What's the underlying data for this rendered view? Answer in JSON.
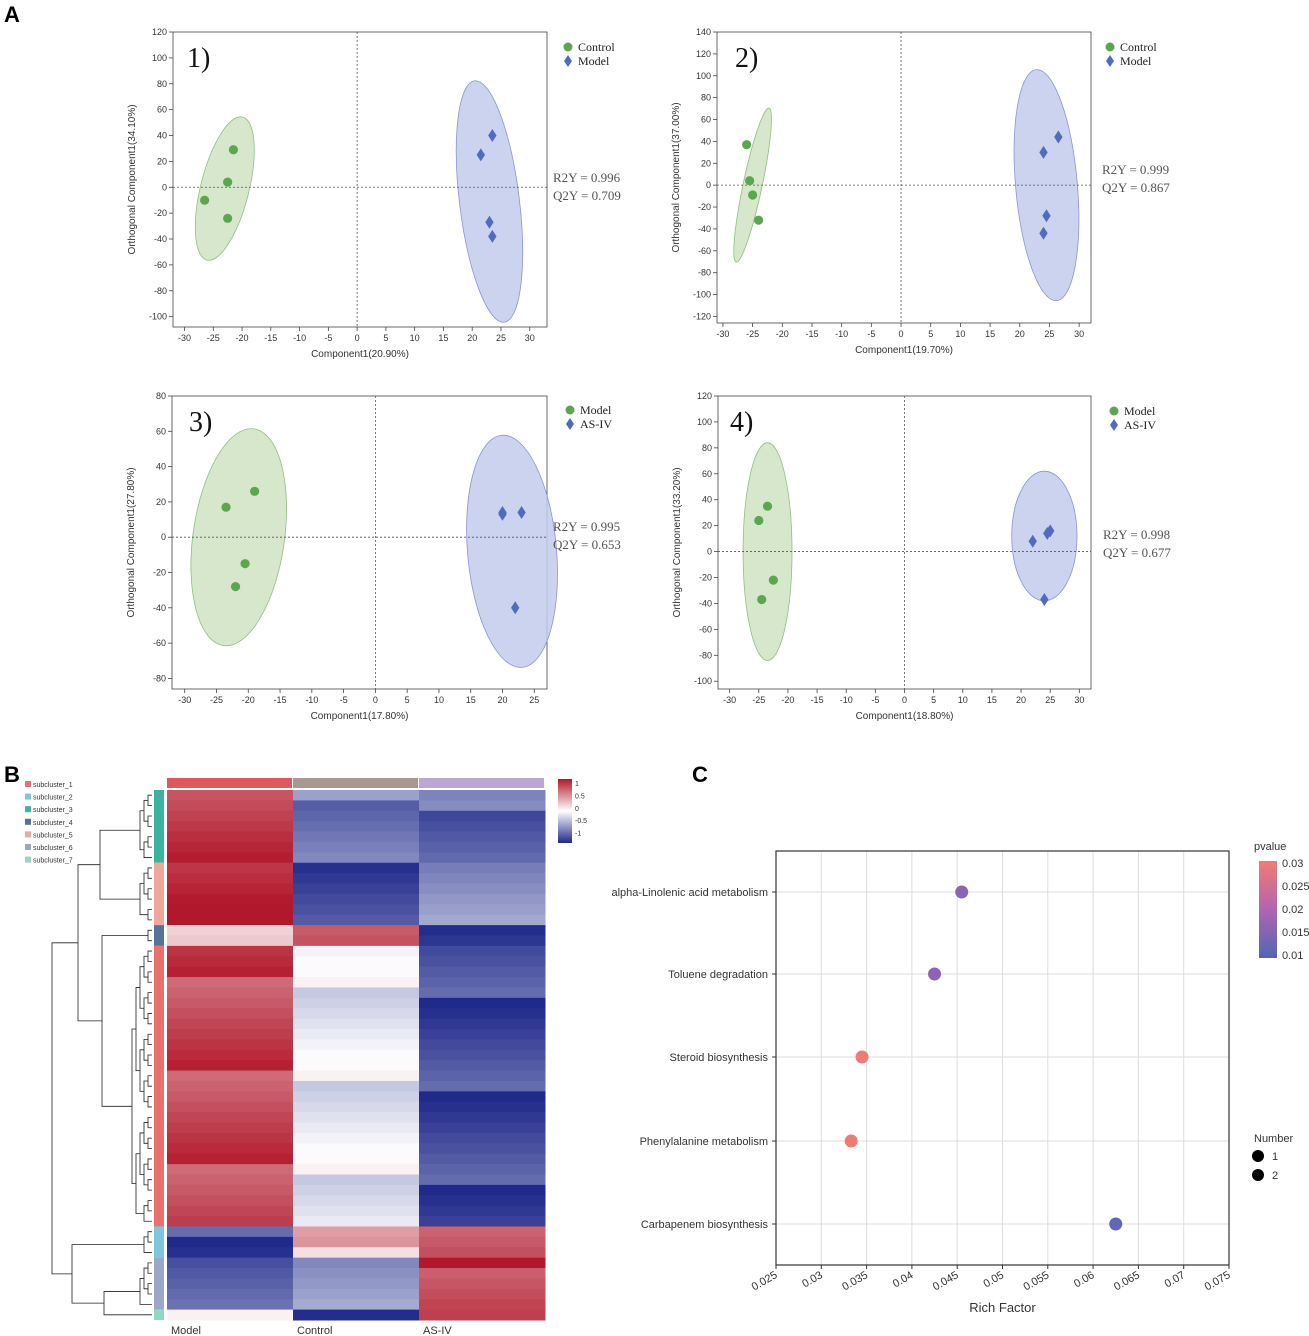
{
  "panels": {
    "a": "A",
    "b": "B",
    "c": "C"
  },
  "colors": {
    "green": "#5aa84e",
    "green_fill": "#cfe3c3",
    "blue": "#4f6cc0",
    "blue_fill": "#c3cbec"
  },
  "chart_data": [
    {
      "type": "scatter",
      "id": "opls1",
      "label": "1)",
      "xlabel": "Component1(20.90%)",
      "ylabel": "Orthogonal Component1(34.10%)",
      "xlim": [
        -32,
        33
      ],
      "ylim": [
        -108,
        120
      ],
      "xticks": [
        -30,
        -25,
        -20,
        -15,
        -10,
        -5,
        0,
        5,
        10,
        15,
        20,
        25,
        30
      ],
      "yticks": [
        -100,
        -80,
        -60,
        -40,
        -20,
        0,
        20,
        40,
        60,
        80,
        100,
        120
      ],
      "r2y": "R2Y = 0.996",
      "q2y": "Q2Y = 0.709",
      "series": [
        {
          "name": "Control",
          "marker": "circle",
          "points": [
            [
              -21.5,
              29
            ],
            [
              -22.5,
              4
            ],
            [
              -22.5,
              -24
            ],
            [
              -26.5,
              -10
            ]
          ],
          "ellipse": {
            "cx": -23,
            "cy": -1,
            "rx": 4.2,
            "ry": 57,
            "rot": 14
          }
        },
        {
          "name": "Model",
          "marker": "diamond",
          "points": [
            [
              23.5,
              40
            ],
            [
              21.5,
              25
            ],
            [
              23,
              -27
            ],
            [
              23.5,
              -38
            ]
          ],
          "ellipse": {
            "cx": 23,
            "cy": -11,
            "rx": 5.2,
            "ry": 94,
            "rot": -7
          }
        }
      ]
    },
    {
      "type": "scatter",
      "id": "opls2",
      "label": "2)",
      "xlabel": "Component1(19.70%)",
      "ylabel": "Orthogonal Component1(37.00%)",
      "xlim": [
        -31,
        32
      ],
      "ylim": [
        -126,
        140
      ],
      "xticks": [
        -30,
        -25,
        -20,
        -15,
        -10,
        -5,
        0,
        5,
        10,
        15,
        20,
        25,
        30
      ],
      "yticks": [
        -120,
        -100,
        -80,
        -60,
        -40,
        -20,
        0,
        20,
        40,
        60,
        80,
        100,
        120,
        140
      ],
      "r2y": "R2Y = 0.999",
      "q2y": "Q2Y = 0.867",
      "series": [
        {
          "name": "Control",
          "marker": "circle",
          "points": [
            [
              -26,
              37
            ],
            [
              -25.5,
              4
            ],
            [
              -25,
              -9
            ],
            [
              -24,
              -32
            ]
          ],
          "ellipse": {
            "cx": -25,
            "cy": 0,
            "rx": 1.6,
            "ry": 72,
            "rot": 12
          }
        },
        {
          "name": "Model",
          "marker": "diamond",
          "points": [
            [
              26.5,
              44
            ],
            [
              24,
              30
            ],
            [
              24.5,
              -28
            ],
            [
              24,
              -44
            ]
          ],
          "ellipse": {
            "cx": 24.5,
            "cy": 0,
            "rx": 5.2,
            "ry": 106,
            "rot": -5
          }
        }
      ]
    },
    {
      "type": "scatter",
      "id": "opls3",
      "label": "3)",
      "xlabel": "Component1(17.80%)",
      "ylabel": "Orthogonal Component1(27.80%)",
      "xlim": [
        -32,
        27
      ],
      "ylim": [
        -86,
        80
      ],
      "xticks": [
        -30,
        -25,
        -20,
        -15,
        -10,
        -5,
        0,
        5,
        10,
        15,
        20,
        25
      ],
      "yticks": [
        -80,
        -60,
        -40,
        -20,
        0,
        20,
        40,
        60,
        80
      ],
      "r2y": "R2Y = 0.995",
      "q2y": "Q2Y = 0.653",
      "series": [
        {
          "name": "Model",
          "marker": "circle",
          "points": [
            [
              -23.5,
              17
            ],
            [
              -19,
              26
            ],
            [
              -20.5,
              -15
            ],
            [
              -22,
              -28
            ]
          ],
          "ellipse": {
            "cx": -21.5,
            "cy": 0,
            "rx": 7.2,
            "ry": 62,
            "rot": 8
          }
        },
        {
          "name": "AS-IV",
          "marker": "diamond",
          "points": [
            [
              20,
              14
            ],
            [
              20,
              13
            ],
            [
              23,
              14
            ],
            [
              22,
              -40
            ]
          ],
          "ellipse": {
            "cx": 21.5,
            "cy": -8,
            "rx": 7,
            "ry": 66,
            "rot": -5
          }
        }
      ]
    },
    {
      "type": "scatter",
      "id": "opls4",
      "label": "4)",
      "xlabel": "Component1(18.80%)",
      "ylabel": "Orthogonal Component1(33.20%)",
      "xlim": [
        -32,
        32
      ],
      "ylim": [
        -106,
        120
      ],
      "xticks": [
        -30,
        -25,
        -20,
        -15,
        -10,
        -5,
        0,
        5,
        10,
        15,
        20,
        25,
        30
      ],
      "yticks": [
        -100,
        -80,
        -60,
        -40,
        -20,
        0,
        20,
        40,
        60,
        80,
        100,
        120
      ],
      "r2y": "R2Y = 0.998",
      "q2y": "Q2Y = 0.677",
      "series": [
        {
          "name": "Model",
          "marker": "circle",
          "points": [
            [
              -23.5,
              35
            ],
            [
              -25,
              24
            ],
            [
              -22.5,
              -22
            ],
            [
              -24.5,
              -37
            ]
          ],
          "ellipse": {
            "cx": -23.5,
            "cy": 0,
            "rx": 4.2,
            "ry": 84,
            "rot": 0
          }
        },
        {
          "name": "AS-IV",
          "marker": "diamond",
          "points": [
            [
              25,
              16
            ],
            [
              24.5,
              14
            ],
            [
              22,
              8
            ],
            [
              24,
              -37
            ]
          ],
          "ellipse": {
            "cx": 24,
            "cy": 12,
            "rx": 5.6,
            "ry": 50,
            "rot": 0
          }
        }
      ]
    },
    {
      "type": "heatmap",
      "id": "heatmap",
      "columns": [
        "Model",
        "Control",
        "AS-IV"
      ],
      "column_colors": [
        "#e0585b",
        "#a99890",
        "#b9a8d6"
      ],
      "scale": {
        "ticks": [
          "1",
          "0.5",
          "0",
          "-0.5",
          "-1"
        ]
      },
      "subclusters": [
        "subcluster_1",
        "subcluster_2",
        "subcluster_3",
        "subcluster_4",
        "subcluster_5",
        "subcluster_6",
        "subcluster_7"
      ],
      "subcluster_colors": [
        "#e8716d",
        "#7ec6dd",
        "#3ab3a0",
        "#55729c",
        "#f0a79b",
        "#9aa7c6",
        "#8fd8c4"
      ],
      "blocks": [
        {
          "cluster": 3,
          "rows": 7,
          "values": [
            0.9,
            -0.6,
            -0.7
          ]
        },
        {
          "cluster": 5,
          "rows": 6,
          "values": [
            0.95,
            -0.85,
            -0.45
          ]
        },
        {
          "cluster": 4,
          "rows": 2,
          "values": [
            0.2,
            0.75,
            -0.9
          ]
        },
        {
          "cluster": 1,
          "rows": 27,
          "values": [
            0.8,
            -0.1,
            -0.85
          ]
        },
        {
          "cluster": 2,
          "rows": 3,
          "values": [
            -0.85,
            0.3,
            0.6
          ]
        },
        {
          "cluster": 6,
          "rows": 5,
          "values": [
            -0.7,
            -0.4,
            0.85
          ]
        },
        {
          "cluster": 7,
          "rows": 1,
          "values": [
            0.1,
            -0.9,
            0.95
          ]
        }
      ]
    },
    {
      "type": "scatter",
      "id": "enrichment",
      "title": "",
      "xlabel": "Rich Factor",
      "ylabel": "",
      "xlim": [
        0.025,
        0.075
      ],
      "xticks": [
        "0.025",
        "0.03",
        "0.035",
        "0.04",
        "0.045",
        "0.05",
        "0.055",
        "0.06",
        "0.065",
        "0.07",
        "0.075"
      ],
      "categories": [
        "alpha-Linolenic acid metabolism",
        "Toluene degradation",
        "Steroid biosynthesis",
        "Phenylalanine metabolism",
        "Carbapenem biosynthesis"
      ],
      "x": [
        0.0455,
        0.0425,
        0.0345,
        0.0333,
        0.0625
      ],
      "pvalue": [
        0.018,
        0.018,
        0.03,
        0.03,
        0.01
      ],
      "colors": [
        "#8e63b6",
        "#8e63b6",
        "#ef7b75",
        "#ef7b75",
        "#5f67b6"
      ],
      "color_legend": {
        "title": "pvalue",
        "ticks": [
          "0.03",
          "0.025",
          "0.02",
          "0.015",
          "0.01"
        ],
        "range": [
          0.0075,
          0.03
        ]
      },
      "size_legend": {
        "title": "Number",
        "items": [
          "1",
          "2"
        ]
      }
    }
  ]
}
